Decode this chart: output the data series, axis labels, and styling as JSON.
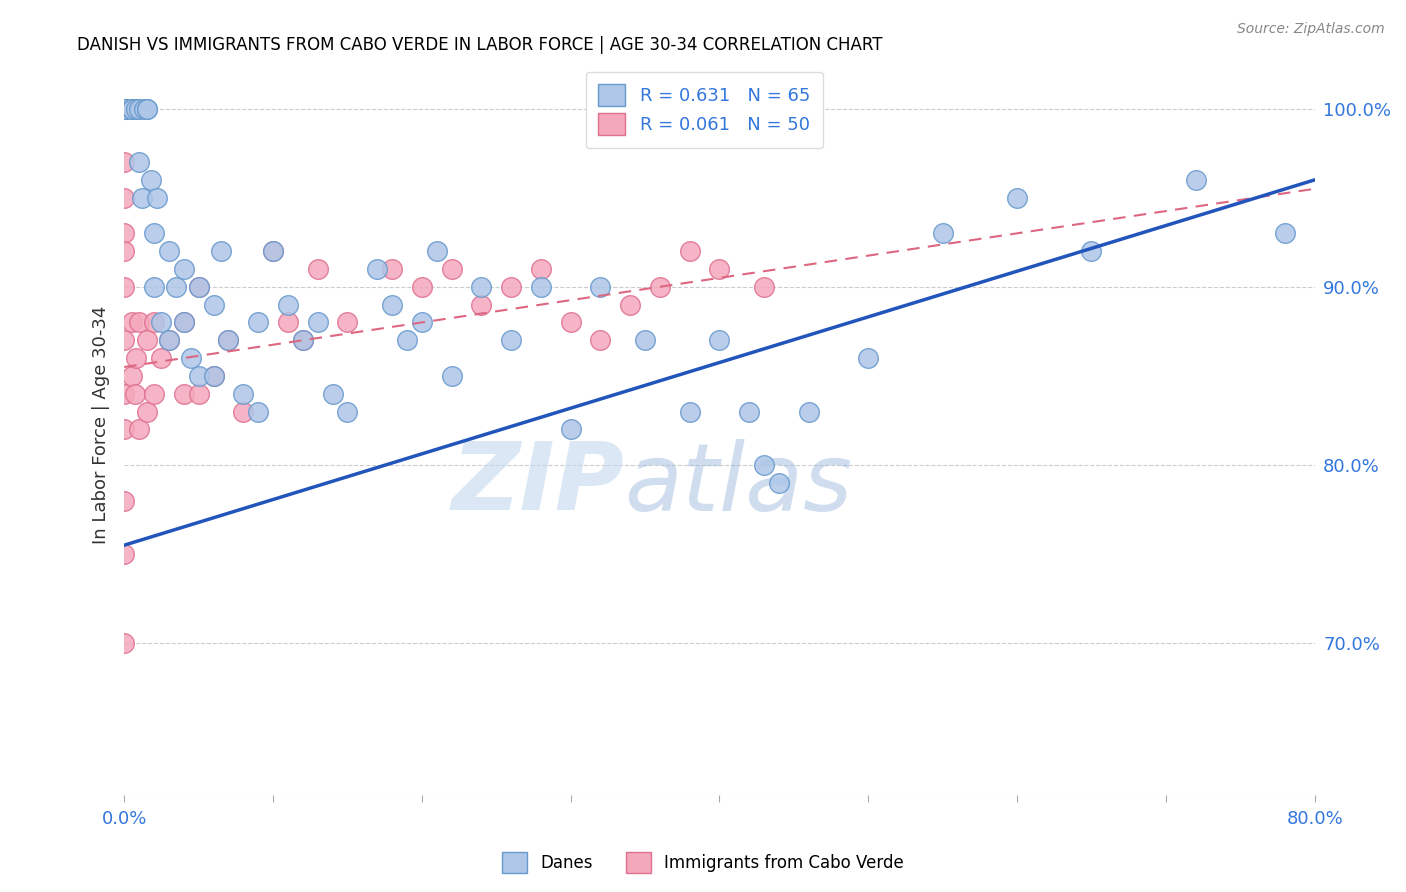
{
  "title": "DANISH VS IMMIGRANTS FROM CABO VERDE IN LABOR FORCE | AGE 30-34 CORRELATION CHART",
  "source": "Source: ZipAtlas.com",
  "ylabel": "In Labor Force | Age 30-34",
  "xlim": [
    0.0,
    0.8
  ],
  "ylim": [
    0.615,
    1.03
  ],
  "xticks": [
    0.0,
    0.1,
    0.2,
    0.3,
    0.4,
    0.5,
    0.6,
    0.7,
    0.8
  ],
  "xticklabels": [
    "0.0%",
    "",
    "",
    "",
    "",
    "",
    "",
    "",
    "80.0%"
  ],
  "ytick_positions": [
    0.7,
    0.8,
    0.9,
    1.0
  ],
  "yticklabels": [
    "70.0%",
    "80.0%",
    "90.0%",
    "100.0%"
  ],
  "danes_color": "#aec6e8",
  "danes_edge": "#6699cc",
  "cabo_color": "#f4a8bc",
  "cabo_edge": "#e07090",
  "danes_R": 0.631,
  "danes_N": 65,
  "cabo_R": 0.061,
  "cabo_N": 50,
  "danes_line_color": "#2255bb",
  "cabo_line_color": "#dd6680",
  "watermark_zip": "ZIP",
  "watermark_atlas": "atlas",
  "danes_line_x0": 0.0,
  "danes_line_y0": 0.755,
  "danes_line_x1": 0.8,
  "danes_line_y1": 0.96,
  "cabo_line_x0": 0.0,
  "cabo_line_y0": 0.855,
  "cabo_line_x1": 0.8,
  "cabo_line_y1": 0.955,
  "danes_x": [
    0.0,
    0.0,
    0.0,
    0.0,
    0.0,
    0.005,
    0.005,
    0.005,
    0.008,
    0.01,
    0.01,
    0.012,
    0.013,
    0.015,
    0.015,
    0.018,
    0.02,
    0.02,
    0.022,
    0.025,
    0.03,
    0.03,
    0.035,
    0.04,
    0.04,
    0.045,
    0.05,
    0.05,
    0.06,
    0.06,
    0.065,
    0.07,
    0.08,
    0.09,
    0.09,
    0.1,
    0.11,
    0.12,
    0.13,
    0.14,
    0.15,
    0.17,
    0.18,
    0.19,
    0.2,
    0.21,
    0.22,
    0.24,
    0.26,
    0.28,
    0.3,
    0.32,
    0.35,
    0.38,
    0.4,
    0.42,
    0.43,
    0.44,
    0.46,
    0.5,
    0.55,
    0.6,
    0.65,
    0.72,
    0.78
  ],
  "danes_y": [
    1.0,
    1.0,
    1.0,
    1.0,
    1.0,
    1.0,
    1.0,
    1.0,
    1.0,
    1.0,
    0.97,
    0.95,
    1.0,
    1.0,
    1.0,
    0.96,
    0.93,
    0.9,
    0.95,
    0.88,
    0.92,
    0.87,
    0.9,
    0.91,
    0.88,
    0.86,
    0.9,
    0.85,
    0.89,
    0.85,
    0.92,
    0.87,
    0.84,
    0.88,
    0.83,
    0.92,
    0.89,
    0.87,
    0.88,
    0.84,
    0.83,
    0.91,
    0.89,
    0.87,
    0.88,
    0.92,
    0.85,
    0.9,
    0.87,
    0.9,
    0.82,
    0.9,
    0.87,
    0.83,
    0.87,
    0.83,
    0.8,
    0.79,
    0.83,
    0.86,
    0.93,
    0.95,
    0.92,
    0.96,
    0.93
  ],
  "cabo_x": [
    0.0,
    0.0,
    0.0,
    0.0,
    0.0,
    0.0,
    0.0,
    0.0,
    0.0,
    0.0,
    0.0,
    0.0,
    0.0,
    0.005,
    0.005,
    0.007,
    0.008,
    0.01,
    0.01,
    0.015,
    0.015,
    0.02,
    0.02,
    0.025,
    0.03,
    0.04,
    0.04,
    0.05,
    0.05,
    0.06,
    0.07,
    0.08,
    0.1,
    0.11,
    0.12,
    0.13,
    0.15,
    0.18,
    0.2,
    0.22,
    0.24,
    0.26,
    0.28,
    0.3,
    0.32,
    0.34,
    0.36,
    0.38,
    0.4,
    0.43
  ],
  "cabo_y": [
    1.0,
    1.0,
    0.97,
    0.95,
    0.93,
    0.92,
    0.9,
    0.87,
    0.84,
    0.82,
    0.78,
    0.75,
    0.7,
    0.88,
    0.85,
    0.84,
    0.86,
    0.88,
    0.82,
    0.87,
    0.83,
    0.88,
    0.84,
    0.86,
    0.87,
    0.88,
    0.84,
    0.9,
    0.84,
    0.85,
    0.87,
    0.83,
    0.92,
    0.88,
    0.87,
    0.91,
    0.88,
    0.91,
    0.9,
    0.91,
    0.89,
    0.9,
    0.91,
    0.88,
    0.87,
    0.89,
    0.9,
    0.92,
    0.91,
    0.9
  ]
}
